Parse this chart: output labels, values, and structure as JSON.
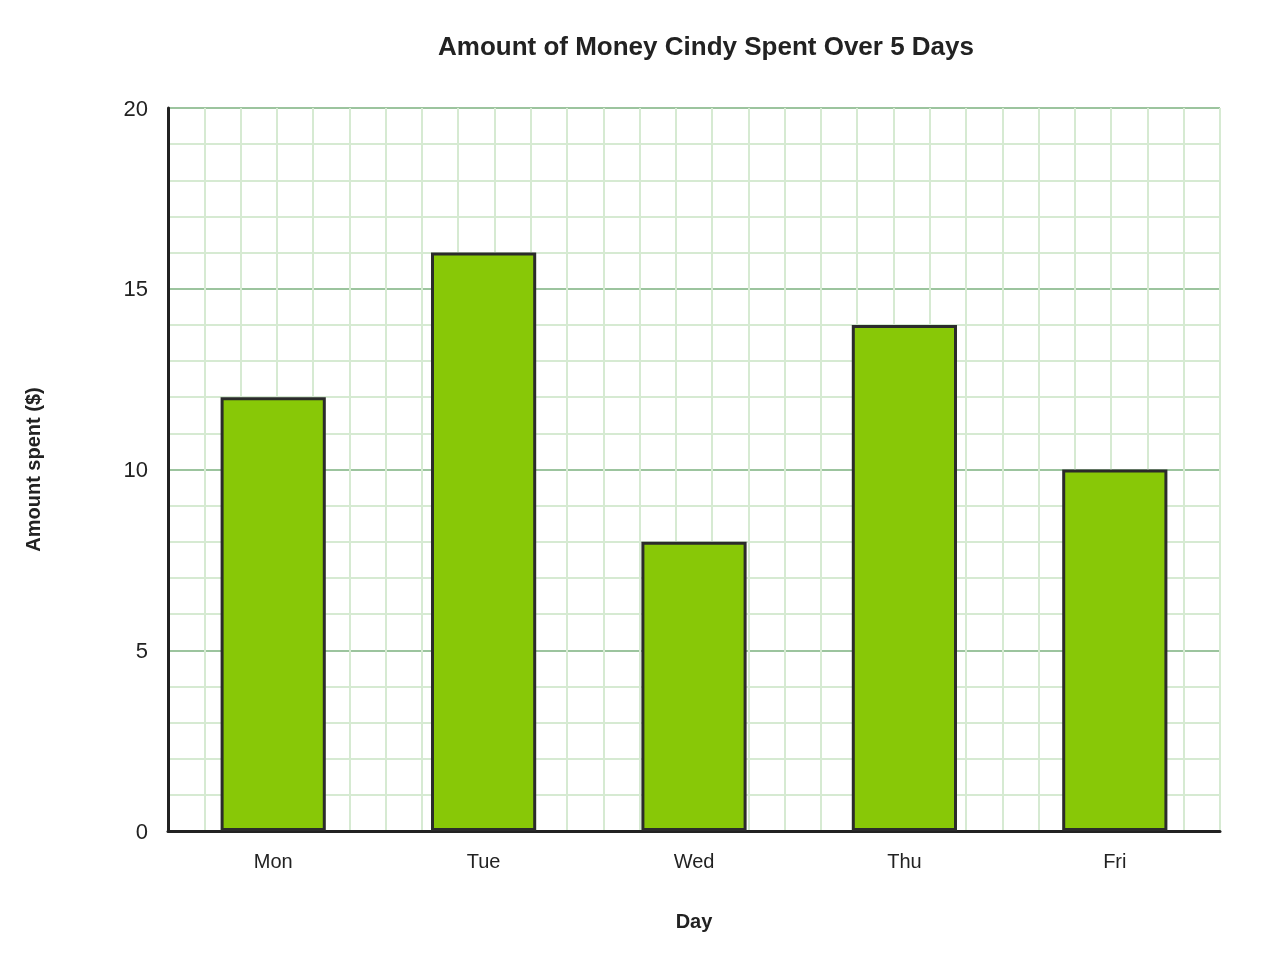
{
  "chart_data": {
    "type": "bar",
    "title": "Amount of Money Cindy Spent Over 5 Days",
    "xlabel": "Day",
    "ylabel": "Amount spent ($)",
    "categories": [
      "Mon",
      "Tue",
      "Wed",
      "Thu",
      "Fri"
    ],
    "values": [
      12,
      16,
      8,
      14,
      10
    ],
    "color": "#88c807",
    "ylim": [
      0,
      20
    ],
    "yticks": [
      0,
      5,
      10,
      15,
      20
    ],
    "grid": true
  }
}
